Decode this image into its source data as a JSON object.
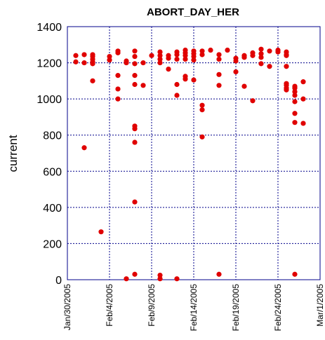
{
  "chart_data": {
    "type": "scatter",
    "title": "ABORT_DAY_HER",
    "ylabel": "current",
    "xlabel": "",
    "ylim": [
      0,
      1400
    ],
    "yticks": [
      0,
      200,
      400,
      600,
      800,
      1000,
      1200,
      1400
    ],
    "xlim": [
      "2005-01-30",
      "2005-03-01"
    ],
    "xticks": [
      {
        "date": "2005-01-30",
        "label": "Jan/30/2005"
      },
      {
        "date": "2005-02-04",
        "label": "Feb/4/2005"
      },
      {
        "date": "2005-02-09",
        "label": "Feb/9/2005"
      },
      {
        "date": "2005-02-14",
        "label": "Feb/14/2005"
      },
      {
        "date": "2005-02-19",
        "label": "Feb/19/2005"
      },
      {
        "date": "2005-02-24",
        "label": "Feb/24/2005"
      },
      {
        "date": "2005-03-01",
        "label": "Mar/1/2005"
      }
    ],
    "grid": true,
    "marker_color": "#e00000",
    "grid_color": "#00008b",
    "points": [
      {
        "x": "2005-01-31",
        "y": 1240
      },
      {
        "x": "2005-01-31",
        "y": 1205
      },
      {
        "x": "2005-02-01",
        "y": 1245
      },
      {
        "x": "2005-02-01",
        "y": 1200
      },
      {
        "x": "2005-02-01",
        "y": 730
      },
      {
        "x": "2005-02-02",
        "y": 1245
      },
      {
        "x": "2005-02-02",
        "y": 1235
      },
      {
        "x": "2005-02-02",
        "y": 1220
      },
      {
        "x": "2005-02-02",
        "y": 1205
      },
      {
        "x": "2005-02-02",
        "y": 1195
      },
      {
        "x": "2005-02-02",
        "y": 1100
      },
      {
        "x": "2005-02-03",
        "y": 265
      },
      {
        "x": "2005-02-04",
        "y": 1235
      },
      {
        "x": "2005-02-04",
        "y": 1215
      },
      {
        "x": "2005-02-05",
        "y": 1265
      },
      {
        "x": "2005-02-05",
        "y": 1255
      },
      {
        "x": "2005-02-05",
        "y": 1130
      },
      {
        "x": "2005-02-05",
        "y": 1055
      },
      {
        "x": "2005-02-05",
        "y": 1000
      },
      {
        "x": "2005-02-06",
        "y": 1210
      },
      {
        "x": "2005-02-06",
        "y": 1200
      },
      {
        "x": "2005-02-06",
        "y": 5
      },
      {
        "x": "2005-02-07",
        "y": 1265
      },
      {
        "x": "2005-02-07",
        "y": 1235
      },
      {
        "x": "2005-02-07",
        "y": 1195
      },
      {
        "x": "2005-02-07",
        "y": 1130
      },
      {
        "x": "2005-02-07",
        "y": 1080
      },
      {
        "x": "2005-02-07",
        "y": 850
      },
      {
        "x": "2005-02-07",
        "y": 835
      },
      {
        "x": "2005-02-07",
        "y": 760
      },
      {
        "x": "2005-02-07",
        "y": 430
      },
      {
        "x": "2005-02-07",
        "y": 30
      },
      {
        "x": "2005-02-08",
        "y": 1200
      },
      {
        "x": "2005-02-08",
        "y": 1075
      },
      {
        "x": "2005-02-09",
        "y": 1240
      },
      {
        "x": "2005-02-10",
        "y": 1260
      },
      {
        "x": "2005-02-10",
        "y": 1240
      },
      {
        "x": "2005-02-10",
        "y": 1220
      },
      {
        "x": "2005-02-10",
        "y": 1200
      },
      {
        "x": "2005-02-10",
        "y": 25
      },
      {
        "x": "2005-02-10",
        "y": 5
      },
      {
        "x": "2005-02-11",
        "y": 1240
      },
      {
        "x": "2005-02-11",
        "y": 1225
      },
      {
        "x": "2005-02-11",
        "y": 1165
      },
      {
        "x": "2005-02-12",
        "y": 1260
      },
      {
        "x": "2005-02-12",
        "y": 1245
      },
      {
        "x": "2005-02-12",
        "y": 1220
      },
      {
        "x": "2005-02-12",
        "y": 1080
      },
      {
        "x": "2005-02-12",
        "y": 1020
      },
      {
        "x": "2005-02-12",
        "y": 5
      },
      {
        "x": "2005-02-13",
        "y": 1270
      },
      {
        "x": "2005-02-13",
        "y": 1255
      },
      {
        "x": "2005-02-13",
        "y": 1240
      },
      {
        "x": "2005-02-13",
        "y": 1220
      },
      {
        "x": "2005-02-13",
        "y": 1125
      },
      {
        "x": "2005-02-13",
        "y": 1110
      },
      {
        "x": "2005-02-14",
        "y": 1265
      },
      {
        "x": "2005-02-14",
        "y": 1250
      },
      {
        "x": "2005-02-14",
        "y": 1235
      },
      {
        "x": "2005-02-14",
        "y": 1215
      },
      {
        "x": "2005-02-14",
        "y": 1105
      },
      {
        "x": "2005-02-15",
        "y": 1265
      },
      {
        "x": "2005-02-15",
        "y": 1245
      },
      {
        "x": "2005-02-15",
        "y": 965
      },
      {
        "x": "2005-02-15",
        "y": 940
      },
      {
        "x": "2005-02-15",
        "y": 790
      },
      {
        "x": "2005-02-16",
        "y": 1270
      },
      {
        "x": "2005-02-17",
        "y": 1245
      },
      {
        "x": "2005-02-17",
        "y": 1220
      },
      {
        "x": "2005-02-17",
        "y": 1135
      },
      {
        "x": "2005-02-17",
        "y": 1075
      },
      {
        "x": "2005-02-17",
        "y": 30
      },
      {
        "x": "2005-02-18",
        "y": 1270
      },
      {
        "x": "2005-02-19",
        "y": 1225
      },
      {
        "x": "2005-02-19",
        "y": 1210
      },
      {
        "x": "2005-02-19",
        "y": 1150
      },
      {
        "x": "2005-02-20",
        "y": 1240
      },
      {
        "x": "2005-02-20",
        "y": 1230
      },
      {
        "x": "2005-02-20",
        "y": 1070
      },
      {
        "x": "2005-02-21",
        "y": 1255
      },
      {
        "x": "2005-02-21",
        "y": 1240
      },
      {
        "x": "2005-02-21",
        "y": 990
      },
      {
        "x": "2005-02-22",
        "y": 1275
      },
      {
        "x": "2005-02-22",
        "y": 1250
      },
      {
        "x": "2005-02-22",
        "y": 1230
      },
      {
        "x": "2005-02-22",
        "y": 1195
      },
      {
        "x": "2005-02-23",
        "y": 1265
      },
      {
        "x": "2005-02-23",
        "y": 1180
      },
      {
        "x": "2005-02-24",
        "y": 1270
      },
      {
        "x": "2005-02-24",
        "y": 1260
      },
      {
        "x": "2005-02-25",
        "y": 1260
      },
      {
        "x": "2005-02-25",
        "y": 1245
      },
      {
        "x": "2005-02-25",
        "y": 1240
      },
      {
        "x": "2005-02-25",
        "y": 1180
      },
      {
        "x": "2005-02-25",
        "y": 1085
      },
      {
        "x": "2005-02-25",
        "y": 1075
      },
      {
        "x": "2005-02-25",
        "y": 1060
      },
      {
        "x": "2005-02-25",
        "y": 1050
      },
      {
        "x": "2005-02-26",
        "y": 1070
      },
      {
        "x": "2005-02-26",
        "y": 1060
      },
      {
        "x": "2005-02-26",
        "y": 1040
      },
      {
        "x": "2005-02-26",
        "y": 1020
      },
      {
        "x": "2005-02-26",
        "y": 985
      },
      {
        "x": "2005-02-26",
        "y": 920
      },
      {
        "x": "2005-02-26",
        "y": 870
      },
      {
        "x": "2005-02-26",
        "y": 30
      },
      {
        "x": "2005-02-27",
        "y": 1095
      },
      {
        "x": "2005-02-27",
        "y": 1000
      },
      {
        "x": "2005-02-27",
        "y": 865
      }
    ]
  }
}
